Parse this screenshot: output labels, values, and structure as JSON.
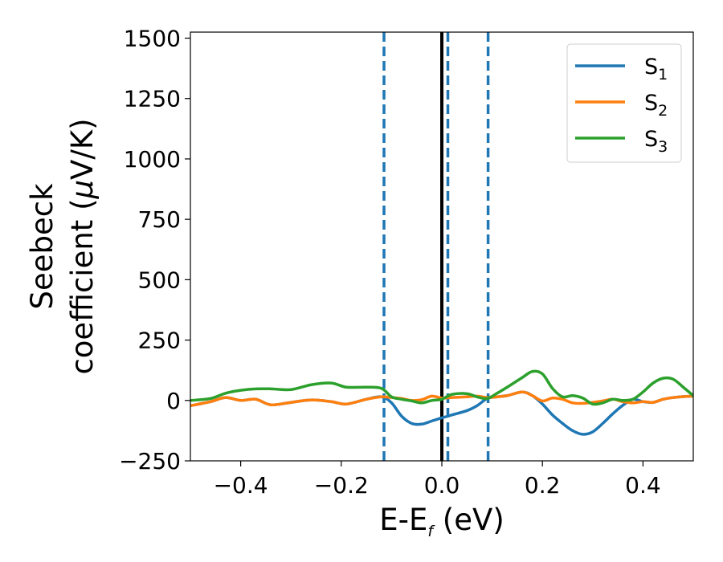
{
  "chart_data": {
    "type": "line",
    "xlabel": {
      "main": "E-E",
      "sub": "f",
      "unit": " (eV)"
    },
    "ylabel": {
      "line1": "Seebeck",
      "line2_prefix": "coefficient  (",
      "mu": "μ",
      "line2_suffix": "V/K)"
    },
    "xlim": [
      -0.5,
      0.5
    ],
    "ylim": [
      -250,
      1525
    ],
    "xticks": [
      -0.4,
      -0.2,
      0.0,
      0.2,
      0.4
    ],
    "xtick_labels": [
      "−0.4",
      "−0.2",
      "0.0",
      "0.2",
      "0.4"
    ],
    "yticks": [
      -250,
      0,
      250,
      500,
      750,
      1000,
      1250,
      1500
    ],
    "ytick_labels": [
      "−250",
      "0",
      "250",
      "500",
      "750",
      "1000",
      "1250",
      "1500"
    ],
    "grid": false,
    "legend_position": "top-right",
    "vlines": [
      {
        "x": 0.0,
        "style": "solid",
        "color": "#000000"
      },
      {
        "x": -0.115,
        "style": "dashed",
        "color": "#1f77b4"
      },
      {
        "x": 0.012,
        "style": "dashed",
        "color": "#1f77b4"
      },
      {
        "x": 0.092,
        "style": "dashed",
        "color": "#1f77b4"
      }
    ],
    "series": [
      {
        "name": "S",
        "sub": "1",
        "color": "#1f77b4",
        "x": [
          -0.5,
          -0.46,
          -0.43,
          -0.4,
          -0.37,
          -0.34,
          -0.3,
          -0.26,
          -0.22,
          -0.19,
          -0.15,
          -0.12,
          -0.1,
          -0.08,
          -0.06,
          -0.04,
          -0.02,
          0.0,
          0.02,
          0.05,
          0.07,
          0.09,
          0.11,
          0.13,
          0.16,
          0.18,
          0.2,
          0.22,
          0.24,
          0.26,
          0.28,
          0.3,
          0.32,
          0.34,
          0.36,
          0.38,
          0.4,
          0.42,
          0.44,
          0.46,
          0.48,
          0.5
        ],
        "y": [
          -22,
          -5,
          12,
          0,
          5,
          -18,
          -8,
          2,
          -5,
          -15,
          5,
          15,
          -10,
          -65,
          -95,
          -98,
          -85,
          -72,
          -60,
          -42,
          -22,
          8,
          15,
          20,
          35,
          20,
          -15,
          -60,
          -95,
          -125,
          -140,
          -130,
          -95,
          -55,
          -20,
          5,
          -5,
          -8,
          5,
          12,
          16,
          18
        ]
      },
      {
        "name": "S",
        "sub": "2",
        "color": "#ff7f0e",
        "x": [
          -0.5,
          -0.46,
          -0.43,
          -0.4,
          -0.37,
          -0.34,
          -0.3,
          -0.26,
          -0.22,
          -0.19,
          -0.15,
          -0.12,
          -0.1,
          -0.08,
          -0.06,
          -0.04,
          -0.02,
          0.0,
          0.02,
          0.05,
          0.07,
          0.09,
          0.11,
          0.13,
          0.16,
          0.18,
          0.2,
          0.22,
          0.24,
          0.26,
          0.28,
          0.3,
          0.32,
          0.34,
          0.36,
          0.38,
          0.4,
          0.42,
          0.44,
          0.46,
          0.48,
          0.5
        ],
        "y": [
          -22,
          -5,
          12,
          0,
          5,
          -18,
          -8,
          2,
          -5,
          -15,
          5,
          15,
          12,
          8,
          0,
          3,
          18,
          10,
          12,
          15,
          18,
          12,
          15,
          20,
          35,
          20,
          -2,
          10,
          5,
          -10,
          -12,
          -8,
          -2,
          5,
          -5,
          -10,
          -5,
          -8,
          5,
          12,
          16,
          18
        ]
      },
      {
        "name": "S",
        "sub": "3",
        "color": "#2ca02c",
        "x": [
          -0.5,
          -0.46,
          -0.43,
          -0.4,
          -0.37,
          -0.34,
          -0.3,
          -0.26,
          -0.22,
          -0.19,
          -0.15,
          -0.12,
          -0.1,
          -0.08,
          -0.06,
          -0.04,
          -0.02,
          0.0,
          0.02,
          0.05,
          0.07,
          0.09,
          0.11,
          0.13,
          0.16,
          0.18,
          0.2,
          0.22,
          0.24,
          0.26,
          0.28,
          0.3,
          0.32,
          0.34,
          0.36,
          0.38,
          0.4,
          0.42,
          0.44,
          0.46,
          0.48,
          0.5
        ],
        "y": [
          0,
          8,
          30,
          42,
          48,
          48,
          45,
          65,
          72,
          55,
          55,
          50,
          15,
          5,
          -2,
          -10,
          0,
          5,
          25,
          28,
          15,
          8,
          30,
          55,
          95,
          120,
          110,
          50,
          15,
          20,
          10,
          -15,
          -10,
          5,
          0,
          5,
          35,
          72,
          92,
          88,
          55,
          20
        ]
      }
    ]
  }
}
